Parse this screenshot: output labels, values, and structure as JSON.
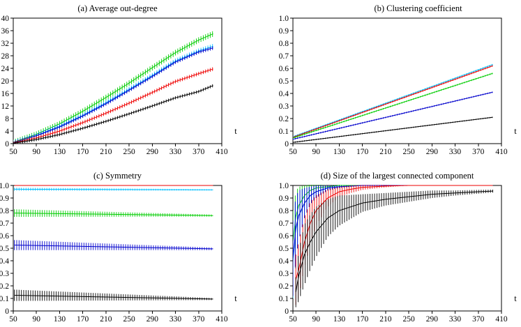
{
  "chart_data": [
    {
      "panel": "a",
      "type": "line",
      "title": "(a) Average out-degree",
      "xlabel": "t",
      "ylabel": "",
      "xlim": [
        50,
        410
      ],
      "ylim": [
        0,
        40
      ],
      "x_ticks": [
        50,
        90,
        130,
        170,
        210,
        250,
        290,
        330,
        370,
        410
      ],
      "y_ticks": [
        0,
        4,
        8,
        12,
        16,
        20,
        24,
        28,
        32,
        36,
        40
      ],
      "y_tick_labels": [
        "0",
        "4",
        "8",
        "12",
        "16",
        "20",
        "24",
        "28",
        "32",
        "36",
        "40"
      ],
      "series": [
        {
          "name": "green",
          "color": "#00cc00",
          "x": [
            50,
            90,
            130,
            170,
            210,
            250,
            290,
            330,
            370,
            395
          ],
          "y": [
            0.4,
            3.0,
            6.3,
            10.3,
            14.7,
            19.3,
            24.2,
            29.0,
            33.0,
            35.0
          ],
          "err": 0.9
        },
        {
          "name": "cyan",
          "color": "#00bfff",
          "x": [
            50,
            90,
            130,
            170,
            210,
            250,
            290,
            330,
            370,
            395
          ],
          "y": [
            0.3,
            2.6,
            5.5,
            9.0,
            13.0,
            17.3,
            21.7,
            26.3,
            29.5,
            31.0
          ],
          "err": 0.8
        },
        {
          "name": "blue",
          "color": "#0000cc",
          "x": [
            50,
            90,
            130,
            170,
            210,
            250,
            290,
            330,
            370,
            395
          ],
          "y": [
            0.3,
            2.5,
            5.3,
            8.8,
            12.7,
            17.0,
            21.4,
            26.0,
            29.2,
            30.5
          ],
          "err": 0.6
        },
        {
          "name": "red",
          "color": "#ee0000",
          "x": [
            50,
            90,
            130,
            170,
            210,
            250,
            290,
            330,
            370,
            395
          ],
          "y": [
            0.2,
            1.8,
            4.0,
            6.7,
            9.7,
            12.9,
            16.3,
            19.8,
            22.3,
            23.8
          ],
          "err": 0.6
        },
        {
          "name": "black",
          "color": "#000000",
          "x": [
            50,
            90,
            130,
            170,
            210,
            250,
            290,
            330,
            370,
            395
          ],
          "y": [
            0.1,
            1.3,
            2.9,
            4.9,
            7.1,
            9.5,
            12.0,
            14.6,
            16.6,
            18.5
          ],
          "err": 0.5
        }
      ]
    },
    {
      "panel": "b",
      "type": "line",
      "title": "(b) Clustering coefficient",
      "xlabel": "t",
      "ylabel": "",
      "xlim": [
        50,
        410
      ],
      "ylim": [
        0,
        1
      ],
      "x_ticks": [
        50,
        90,
        130,
        170,
        210,
        250,
        290,
        330,
        370,
        410
      ],
      "y_ticks": [
        0,
        0.1,
        0.2,
        0.3,
        0.4,
        0.5,
        0.6,
        0.7,
        0.8,
        0.9,
        1.0
      ],
      "y_tick_labels": [
        "0",
        "0.1",
        "0.2",
        "0.3",
        "0.4",
        "0.5",
        "0.6",
        "0.7",
        "0.8",
        "0.9",
        "1.0"
      ],
      "series": [
        {
          "name": "cyan",
          "color": "#00bfff",
          "x": [
            50,
            395
          ],
          "y": [
            0.055,
            0.63
          ],
          "err": 0.006
        },
        {
          "name": "red",
          "color": "#ee0000",
          "x": [
            50,
            395
          ],
          "y": [
            0.05,
            0.62
          ],
          "err": 0.006
        },
        {
          "name": "green",
          "color": "#00cc00",
          "x": [
            50,
            395
          ],
          "y": [
            0.045,
            0.56
          ],
          "err": 0.006
        },
        {
          "name": "blue",
          "color": "#0000cc",
          "x": [
            50,
            395
          ],
          "y": [
            0.035,
            0.41
          ],
          "err": 0.006
        },
        {
          "name": "black",
          "color": "#000000",
          "x": [
            50,
            395
          ],
          "y": [
            0.01,
            0.21
          ],
          "err": 0.005
        }
      ]
    },
    {
      "panel": "c",
      "type": "line",
      "title": "(c) Symmetry",
      "xlabel": "t",
      "ylabel": "",
      "xlim": [
        50,
        410
      ],
      "ylim": [
        0,
        1
      ],
      "x_ticks": [
        50,
        90,
        130,
        170,
        210,
        250,
        290,
        330,
        370,
        410
      ],
      "y_ticks": [
        0,
        0.1,
        0.2,
        0.3,
        0.4,
        0.5,
        0.6,
        0.7,
        0.8,
        0.9,
        1.0
      ],
      "y_tick_labels": [
        "0",
        "0.1",
        "0.2",
        "0.3",
        "0.4",
        "0.5",
        "0.6",
        "0.7",
        "0.8",
        "0.9",
        "1.0"
      ],
      "series": [
        {
          "name": "red",
          "color": "#ee0000",
          "x": [
            52,
            395
          ],
          "y": [
            1.0,
            1.0
          ],
          "err_start": 0.0,
          "err_end": 0.0
        },
        {
          "name": "cyan",
          "color": "#00bfff",
          "x": [
            52,
            395
          ],
          "y": [
            0.97,
            0.965
          ],
          "err_start": 0.012,
          "err_end": 0.005
        },
        {
          "name": "green",
          "color": "#00cc00",
          "x": [
            52,
            395
          ],
          "y": [
            0.78,
            0.76
          ],
          "err_start": 0.03,
          "err_end": 0.008
        },
        {
          "name": "blue",
          "color": "#0000cc",
          "x": [
            52,
            395
          ],
          "y": [
            0.525,
            0.495
          ],
          "err_start": 0.04,
          "err_end": 0.01
        },
        {
          "name": "black",
          "color": "#000000",
          "x": [
            52,
            395
          ],
          "y": [
            0.125,
            0.095
          ],
          "err_start": 0.045,
          "err_end": 0.008
        }
      ]
    },
    {
      "panel": "d",
      "type": "line",
      "title": "(d) Size of the largest connected component",
      "xlabel": "t",
      "ylabel": "",
      "xlim": [
        50,
        410
      ],
      "ylim": [
        0,
        1
      ],
      "x_ticks": [
        50,
        90,
        130,
        170,
        210,
        250,
        290,
        330,
        370,
        410
      ],
      "y_ticks": [
        0,
        0.1,
        0.2,
        0.3,
        0.4,
        0.5,
        0.6,
        0.7,
        0.8,
        0.9,
        1.0
      ],
      "y_tick_labels": [
        "0",
        "0.1",
        "0.2",
        "0.3",
        "0.4",
        "0.5",
        "0.6",
        "0.7",
        "0.8",
        "0.9",
        "1.0"
      ],
      "series": [
        {
          "name": "green",
          "color": "#00cc00",
          "x": [
            50,
            55,
            60,
            70,
            80,
            90,
            110,
            130,
            170,
            210,
            395
          ],
          "y": [
            0.55,
            0.75,
            0.84,
            0.92,
            0.96,
            0.98,
            0.99,
            1.0,
            1.0,
            1.0,
            1.0
          ],
          "err": [
            0.25,
            0.2,
            0.15,
            0.08,
            0.05,
            0.03,
            0.01,
            0.005,
            0.0,
            0.0,
            0.0
          ]
        },
        {
          "name": "cyan",
          "color": "#00bfff",
          "x": [
            50,
            55,
            60,
            70,
            80,
            90,
            110,
            130,
            170,
            210,
            395
          ],
          "y": [
            0.4,
            0.65,
            0.76,
            0.86,
            0.92,
            0.95,
            0.98,
            0.99,
            1.0,
            1.0,
            1.0
          ],
          "err": [
            0.3,
            0.25,
            0.2,
            0.12,
            0.07,
            0.05,
            0.02,
            0.01,
            0.0,
            0.0,
            0.0
          ]
        },
        {
          "name": "blue",
          "color": "#0000cc",
          "x": [
            50,
            55,
            60,
            70,
            80,
            90,
            110,
            130,
            170,
            210,
            395
          ],
          "y": [
            0.42,
            0.66,
            0.76,
            0.86,
            0.92,
            0.95,
            0.98,
            0.99,
            1.0,
            1.0,
            1.0
          ],
          "err": [
            0.3,
            0.25,
            0.2,
            0.12,
            0.07,
            0.05,
            0.02,
            0.01,
            0.0,
            0.0,
            0.0
          ]
        },
        {
          "name": "red",
          "color": "#ee0000",
          "x": [
            55,
            60,
            70,
            80,
            90,
            110,
            130,
            150,
            170,
            210,
            250,
            395
          ],
          "y": [
            0.25,
            0.33,
            0.55,
            0.7,
            0.8,
            0.9,
            0.95,
            0.97,
            0.985,
            0.995,
            1.0,
            1.0
          ],
          "err": [
            0.2,
            0.22,
            0.2,
            0.17,
            0.12,
            0.07,
            0.04,
            0.03,
            0.02,
            0.01,
            0.0,
            0.0
          ]
        },
        {
          "name": "black",
          "color": "#000000",
          "x": [
            55,
            60,
            70,
            80,
            90,
            110,
            130,
            170,
            210,
            250,
            290,
            330,
            370,
            395
          ],
          "y": [
            0.15,
            0.28,
            0.45,
            0.55,
            0.63,
            0.74,
            0.8,
            0.86,
            0.89,
            0.91,
            0.93,
            0.94,
            0.95,
            0.955
          ],
          "err": [
            0.12,
            0.2,
            0.24,
            0.22,
            0.2,
            0.15,
            0.12,
            0.07,
            0.05,
            0.04,
            0.03,
            0.02,
            0.015,
            0.012
          ]
        }
      ]
    }
  ]
}
